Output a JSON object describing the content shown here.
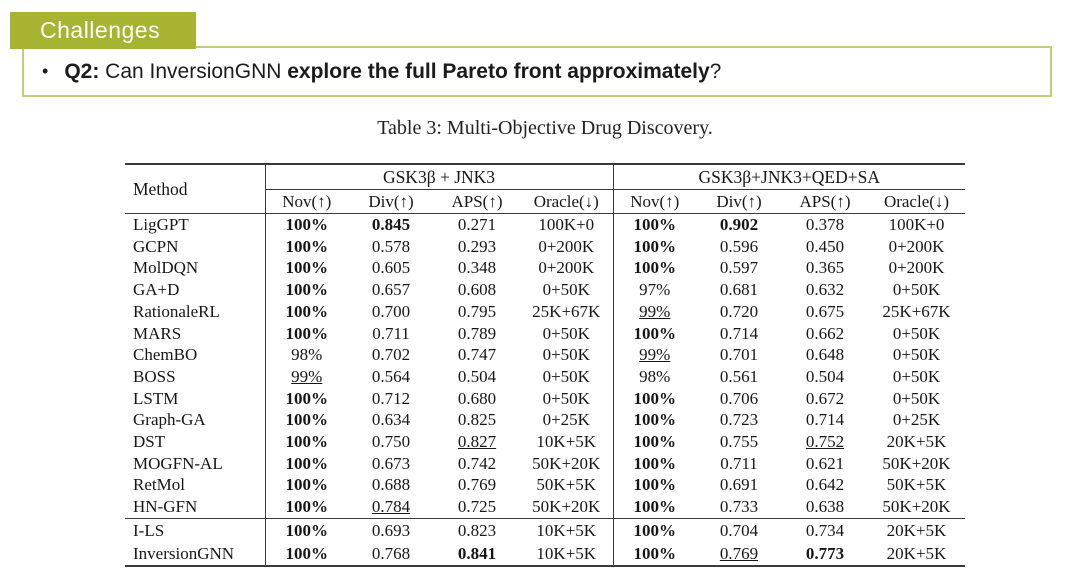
{
  "colors": {
    "badge_bg": "#a7b431",
    "box_border": "#c1cd7c",
    "text": "#1b1b1b",
    "rule": "#3a3a3a"
  },
  "header": {
    "badge": "Challenges",
    "bullet": "•",
    "question_segments": [
      {
        "text": "Q2:",
        "bold": true
      },
      {
        "text": " Can InversionGNN ",
        "bold": false
      },
      {
        "text": "explore the full Pareto front approximately",
        "bold": true
      },
      {
        "text": "?",
        "bold": false
      }
    ]
  },
  "table": {
    "caption": "Table 3: Multi-Objective Drug Discovery.",
    "method_header": "Method",
    "groups": [
      {
        "title": "GSK3β + JNK3",
        "subheaders": [
          "Nov(↑)",
          "Div(↑)",
          "APS(↑)",
          "Oracle(↓)"
        ]
      },
      {
        "title": "GSK3β+JNK3+QED+SA",
        "subheaders": [
          "Nov(↑)",
          "Div(↑)",
          "APS(↑)",
          "Oracle(↓)"
        ]
      }
    ],
    "rows": [
      {
        "method": "LigGPT",
        "cells": [
          {
            "v": "100%",
            "b": 1
          },
          {
            "v": "0.845",
            "b": 1
          },
          {
            "v": "0.271"
          },
          {
            "v": "100K+0"
          },
          {
            "v": "100%",
            "b": 1
          },
          {
            "v": "0.902",
            "b": 1
          },
          {
            "v": "0.378"
          },
          {
            "v": "100K+0"
          }
        ]
      },
      {
        "method": "GCPN",
        "cells": [
          {
            "v": "100%",
            "b": 1
          },
          {
            "v": "0.578"
          },
          {
            "v": "0.293"
          },
          {
            "v": "0+200K"
          },
          {
            "v": "100%",
            "b": 1
          },
          {
            "v": "0.596"
          },
          {
            "v": "0.450"
          },
          {
            "v": "0+200K"
          }
        ]
      },
      {
        "method": "MolDQN",
        "cells": [
          {
            "v": "100%",
            "b": 1
          },
          {
            "v": "0.605"
          },
          {
            "v": "0.348"
          },
          {
            "v": "0+200K"
          },
          {
            "v": "100%",
            "b": 1
          },
          {
            "v": "0.597"
          },
          {
            "v": "0.365"
          },
          {
            "v": "0+200K"
          }
        ]
      },
      {
        "method": "GA+D",
        "cells": [
          {
            "v": "100%",
            "b": 1
          },
          {
            "v": "0.657"
          },
          {
            "v": "0.608"
          },
          {
            "v": "0+50K"
          },
          {
            "v": "97%"
          },
          {
            "v": "0.681"
          },
          {
            "v": "0.632"
          },
          {
            "v": "0+50K"
          }
        ]
      },
      {
        "method": "RationaleRL",
        "cells": [
          {
            "v": "100%",
            "b": 1
          },
          {
            "v": "0.700"
          },
          {
            "v": "0.795"
          },
          {
            "v": "25K+67K"
          },
          {
            "v": "99%",
            "u": 1
          },
          {
            "v": "0.720"
          },
          {
            "v": "0.675"
          },
          {
            "v": "25K+67K"
          }
        ]
      },
      {
        "method": "MARS",
        "cells": [
          {
            "v": "100%",
            "b": 1
          },
          {
            "v": "0.711"
          },
          {
            "v": "0.789"
          },
          {
            "v": "0+50K"
          },
          {
            "v": "100%",
            "b": 1
          },
          {
            "v": "0.714"
          },
          {
            "v": "0.662"
          },
          {
            "v": "0+50K"
          }
        ]
      },
      {
        "method": "ChemBO",
        "cells": [
          {
            "v": "98%"
          },
          {
            "v": "0.702"
          },
          {
            "v": "0.747"
          },
          {
            "v": "0+50K"
          },
          {
            "v": "99%",
            "u": 1
          },
          {
            "v": "0.701"
          },
          {
            "v": "0.648"
          },
          {
            "v": "0+50K"
          }
        ]
      },
      {
        "method": "BOSS",
        "cells": [
          {
            "v": "99%",
            "u": 1
          },
          {
            "v": "0.564"
          },
          {
            "v": "0.504"
          },
          {
            "v": "0+50K"
          },
          {
            "v": "98%"
          },
          {
            "v": "0.561"
          },
          {
            "v": "0.504"
          },
          {
            "v": "0+50K"
          }
        ]
      },
      {
        "method": "LSTM",
        "cells": [
          {
            "v": "100%",
            "b": 1
          },
          {
            "v": "0.712"
          },
          {
            "v": "0.680"
          },
          {
            "v": "0+50K"
          },
          {
            "v": "100%",
            "b": 1
          },
          {
            "v": "0.706"
          },
          {
            "v": "0.672"
          },
          {
            "v": "0+50K"
          }
        ]
      },
      {
        "method": "Graph-GA",
        "cells": [
          {
            "v": "100%",
            "b": 1
          },
          {
            "v": "0.634"
          },
          {
            "v": "0.825"
          },
          {
            "v": "0+25K"
          },
          {
            "v": "100%",
            "b": 1
          },
          {
            "v": "0.723"
          },
          {
            "v": "0.714"
          },
          {
            "v": "0+25K"
          }
        ]
      },
      {
        "method": "DST",
        "cells": [
          {
            "v": "100%",
            "b": 1
          },
          {
            "v": "0.750"
          },
          {
            "v": "0.827",
            "u": 1
          },
          {
            "v": "10K+5K"
          },
          {
            "v": "100%",
            "b": 1
          },
          {
            "v": "0.755"
          },
          {
            "v": "0.752",
            "u": 1
          },
          {
            "v": "20K+5K"
          }
        ]
      },
      {
        "method": "MOGFN-AL",
        "cells": [
          {
            "v": "100%",
            "b": 1
          },
          {
            "v": "0.673"
          },
          {
            "v": "0.742"
          },
          {
            "v": "50K+20K"
          },
          {
            "v": "100%",
            "b": 1
          },
          {
            "v": "0.711"
          },
          {
            "v": "0.621"
          },
          {
            "v": "50K+20K"
          }
        ]
      },
      {
        "method": "RetMol",
        "cells": [
          {
            "v": "100%",
            "b": 1
          },
          {
            "v": "0.688"
          },
          {
            "v": "0.769"
          },
          {
            "v": "50K+5K"
          },
          {
            "v": "100%",
            "b": 1
          },
          {
            "v": "0.691"
          },
          {
            "v": "0.642"
          },
          {
            "v": "50K+5K"
          }
        ]
      },
      {
        "method": "HN-GFN",
        "cells": [
          {
            "v": "100%",
            "b": 1
          },
          {
            "v": "0.784",
            "u": 1
          },
          {
            "v": "0.725"
          },
          {
            "v": "50K+20K"
          },
          {
            "v": "100%",
            "b": 1
          },
          {
            "v": "0.733"
          },
          {
            "v": "0.638"
          },
          {
            "v": "50K+20K"
          }
        ]
      },
      {
        "method": "I-LS",
        "rule_above": true,
        "section": 2,
        "cells": [
          {
            "v": "100%",
            "b": 1
          },
          {
            "v": "0.693"
          },
          {
            "v": "0.823"
          },
          {
            "v": "10K+5K"
          },
          {
            "v": "100%",
            "b": 1
          },
          {
            "v": "0.704"
          },
          {
            "v": "0.734"
          },
          {
            "v": "20K+5K"
          }
        ]
      },
      {
        "method": "InversionGNN",
        "section": 2,
        "cells": [
          {
            "v": "100%",
            "b": 1
          },
          {
            "v": "0.768"
          },
          {
            "v": "0.841",
            "b": 1
          },
          {
            "v": "10K+5K"
          },
          {
            "v": "100%",
            "b": 1
          },
          {
            "v": "0.769",
            "u": 1
          },
          {
            "v": "0.773",
            "b": 1
          },
          {
            "v": "20K+5K"
          }
        ]
      }
    ]
  }
}
